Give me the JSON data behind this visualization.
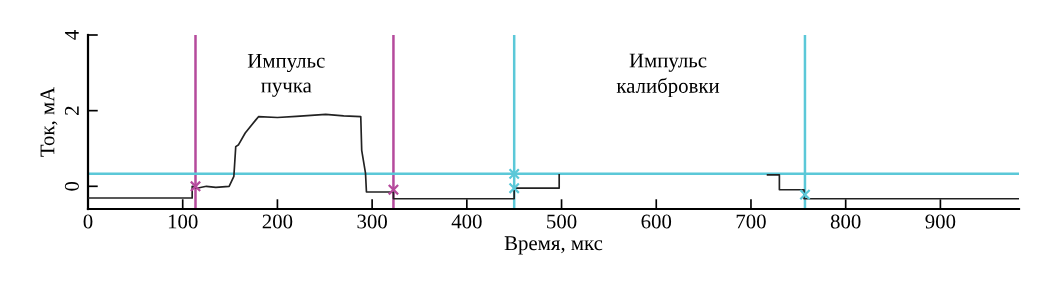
{
  "chart_data": {
    "type": "line",
    "xlabel": "Время, мкс",
    "ylabel": "Ток, мА",
    "xlim": [
      0,
      983
    ],
    "xticks": [
      0,
      100,
      200,
      300,
      400,
      500,
      600,
      700,
      800,
      900
    ],
    "ylim": [
      -0.6,
      4
    ],
    "yticks": [
      0,
      2,
      4
    ],
    "grid": false,
    "legend": false,
    "series": [
      {
        "color": "#222222",
        "marker": "none",
        "line_style": "solid",
        "x": [
          0,
          110,
          110,
          115,
          125,
          135,
          149,
          154,
          156,
          159,
          166,
          177,
          180,
          200,
          220,
          251,
          270,
          288,
          289,
          293,
          294,
          322.5,
          322.5,
          450,
          450,
          497.5,
          497.5,
          500,
          717.5,
          730,
          730,
          756,
          756,
          983
        ],
        "values": [
          -0.31,
          -0.31,
          0,
          -0.05,
          0,
          -0.03,
          0,
          0.26,
          1.05,
          1.1,
          1.41,
          1.75,
          1.84,
          1.82,
          1.85,
          1.9,
          1.86,
          1.84,
          0.95,
          0.35,
          -0.15,
          -0.15,
          -0.33,
          -0.33,
          -0.05,
          -0.05,
          0.3,
          null,
          0.3,
          0.3,
          -0.09,
          -0.09,
          -0.33,
          -0.33
        ]
      },
      {
        "type": "scatter",
        "color": "#b54a9c",
        "marker": "cross",
        "x": [
          113.5,
          322.5
        ],
        "values": [
          0,
          -0.09
        ]
      },
      {
        "type": "scatter",
        "color": "#5bc8d8",
        "marker": "cross",
        "x": [
          450,
          450,
          757
        ],
        "values": [
          0.33,
          -0.05,
          -0.22
        ]
      }
    ],
    "ref_lines": [
      {
        "axis": "x",
        "value": 113.5,
        "color": "#b54a9c"
      },
      {
        "axis": "x",
        "value": 322.5,
        "color": "#b54a9c"
      },
      {
        "axis": "x",
        "value": 450,
        "color": "#5bc8d8"
      },
      {
        "axis": "x",
        "value": 757,
        "color": "#5bc8d8"
      },
      {
        "axis": "y",
        "value": 0.33,
        "color": "#5bc8d8"
      }
    ],
    "annotations": [
      "Импульс\nпучка",
      "Импульс\nкалибровки"
    ]
  }
}
